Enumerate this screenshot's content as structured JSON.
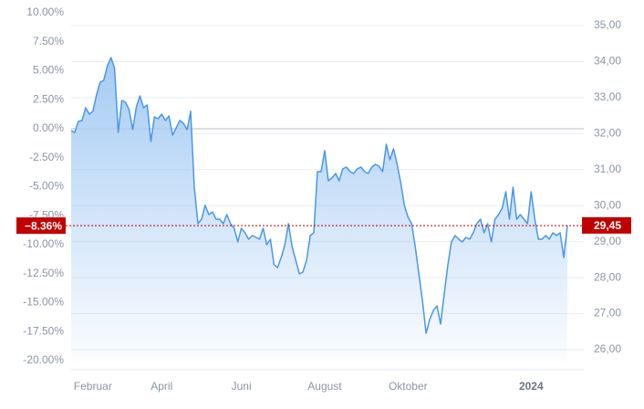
{
  "chart_data": {
    "type": "line",
    "ylim": [
      -20,
      10
    ],
    "yticks": [
      {
        "value": 10,
        "label": "10.00%"
      },
      {
        "value": 7.5,
        "label": "7.50%"
      },
      {
        "value": 5,
        "label": "5.00%"
      },
      {
        "value": 2.5,
        "label": "2.50%"
      },
      {
        "value": 0,
        "label": "0.00%"
      },
      {
        "value": -2.5,
        "label": "-2.50%"
      },
      {
        "value": -5,
        "label": "-5.00%"
      },
      {
        "value": -7.5,
        "label": "-7.50%"
      },
      {
        "value": -10,
        "label": "-10.00%"
      },
      {
        "value": -12.5,
        "label": "-12.50%"
      },
      {
        "value": -15,
        "label": "-15.00%"
      },
      {
        "value": -17.5,
        "label": "-17.50%"
      },
      {
        "value": -20,
        "label": "-20.00%"
      }
    ],
    "y2lim": [
      25.695,
      35.355
    ],
    "y2ticks": [
      {
        "value": 35,
        "label": "35,00"
      },
      {
        "value": 34,
        "label": "34,00"
      },
      {
        "value": 33,
        "label": "33,00"
      },
      {
        "value": 32,
        "label": "32,00"
      },
      {
        "value": 31,
        "label": "31,00"
      },
      {
        "value": 30,
        "label": "30,00"
      },
      {
        "value": 29,
        "label": "29,00"
      },
      {
        "value": 28,
        "label": "28,00"
      },
      {
        "value": 27,
        "label": "27,00"
      },
      {
        "value": 26,
        "label": "26,00"
      }
    ],
    "xlim": [
      0,
      137
    ],
    "xticks": [
      {
        "value": 6,
        "label": "Februar"
      },
      {
        "value": 25,
        "label": "April"
      },
      {
        "value": 47,
        "label": "Juni"
      },
      {
        "value": 70,
        "label": "August"
      },
      {
        "value": 93,
        "label": "Oktober"
      },
      {
        "value": 127,
        "label": "2024",
        "bold": true
      }
    ],
    "grid": true,
    "series": [
      {
        "color": "#4a98e3",
        "values": [
          -0.16,
          -0.31,
          0.63,
          0.71,
          1.81,
          1.26,
          1.5,
          2.91,
          4.02,
          4.17,
          5.43,
          6.14,
          5.2,
          -0.31,
          2.44,
          2.28,
          1.65,
          -0.08,
          1.89,
          2.83,
          1.81,
          2.05,
          -1.1,
          1.02,
          0.87,
          1.26,
          0.71,
          1.1,
          -0.55,
          0.08,
          0.71,
          0.47,
          -0.08,
          1.5,
          -5.04,
          -8.19,
          -7.8,
          -6.61,
          -7.4,
          -7.17,
          -7.8,
          -7.8,
          -8.19,
          -7.4,
          -8.19,
          -8.58,
          -9.76,
          -8.58,
          -8.98,
          -9.53,
          -9.21,
          -9.37,
          -9.53,
          -8.58,
          -10.0,
          -9.53,
          -11.73,
          -11.97,
          -11.1,
          -10.0,
          -8.19,
          -10.16,
          -11.34,
          -12.52,
          -12.36,
          -11.34,
          -9.21,
          -8.98,
          -3.7,
          -3.7,
          -1.89,
          -4.49,
          -4.25,
          -3.86,
          -4.49,
          -3.46,
          -3.31,
          -3.7,
          -3.86,
          -3.46,
          -3.31,
          -3.7,
          -3.86,
          -3.31,
          -3.07,
          -3.23,
          -3.7,
          -1.34,
          -2.68,
          -1.73,
          -3.07,
          -4.65,
          -6.61,
          -7.64,
          -8.19,
          -10.16,
          -12.52,
          -14.88,
          -17.64,
          -16.46,
          -15.67,
          -15.28,
          -16.85,
          -14.25,
          -11.73,
          -9.76,
          -9.21,
          -9.53,
          -9.76,
          -9.37,
          -9.53,
          -8.98,
          -8.19,
          -7.8,
          -8.98,
          -8.19,
          -9.76,
          -7.8,
          -7.4,
          -6.85,
          -5.43,
          -7.8,
          -5.04,
          -7.8,
          -7.4,
          -7.8,
          -8.19,
          -5.43,
          -7.8,
          -9.53,
          -9.53,
          -9.21,
          -9.53,
          -8.98,
          -9.21,
          -8.98,
          -11.1,
          -8.36
        ]
      }
    ],
    "annotations": [
      {
        "value": -8.36,
        "label": "−8.36%",
        "axis": "y",
        "color": "#c00000"
      },
      {
        "value": 29.45,
        "label": "29,45",
        "axis": "y2",
        "color": "#c00000"
      }
    ]
  }
}
